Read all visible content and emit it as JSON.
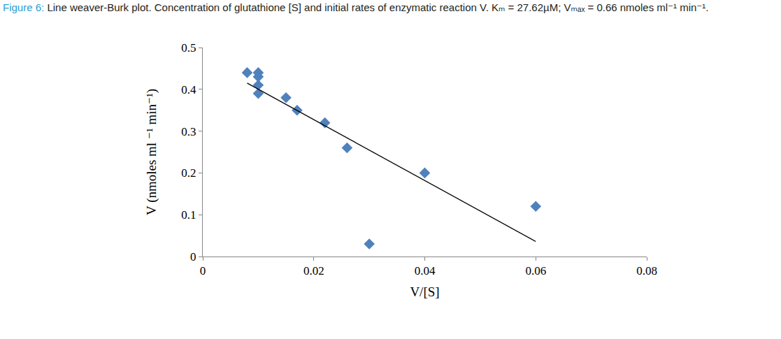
{
  "chart_data": {
    "type": "scatter",
    "figure_label": "Figure 6:",
    "title": "Line weaver-Burk plot. Concentration of glutathione [S] and initial rates of enzymatic reaction V. Kₘ = 27.62µM; Vₘₐₓ = 0.66 nmoles ml⁻¹ min⁻¹.",
    "x_label": "V/[S]",
    "y_label": "V (nmoles ml ⁻¹ min⁻¹)",
    "series": [
      {
        "type": "scatter",
        "color": "#4f81bd",
        "marker": "diamond",
        "x": [
          0.008,
          0.01,
          0.01,
          0.01,
          0.01,
          0.015,
          0.017,
          0.022,
          0.026,
          0.03,
          0.04,
          0.06
        ],
        "values": [
          0.44,
          0.44,
          0.43,
          0.41,
          0.39,
          0.38,
          0.35,
          0.32,
          0.26,
          0.03,
          0.2,
          0.12
        ]
      },
      {
        "type": "line",
        "color": "#000000",
        "line_style": "solid",
        "x": [
          0.008,
          0.06
        ],
        "values": [
          0.415,
          0.036
        ]
      }
    ],
    "xlim": [
      0,
      0.08
    ],
    "xticks": [
      0,
      0.02,
      0.04,
      0.06,
      0.08
    ],
    "ylim": [
      0,
      0.5
    ],
    "yticks": [
      0,
      0.1,
      0.2,
      0.3,
      0.4,
      0.5
    ],
    "grid": false
  }
}
